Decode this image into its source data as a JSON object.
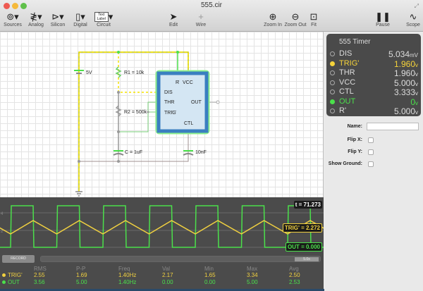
{
  "window": {
    "title": "555.cir"
  },
  "toolbar": {
    "items": [
      {
        "label": "Sources",
        "icon": "ac-source-icon"
      },
      {
        "label": "Analog",
        "icon": "resistor-icon"
      },
      {
        "label": "Silicon",
        "icon": "diode-icon"
      },
      {
        "label": "Digital",
        "icon": "chip-icon"
      },
      {
        "label": "Circuit",
        "icon": "text-label-icon",
        "icon_text": "Text Label"
      },
      {
        "label": "Edit",
        "icon": "pointer-icon"
      },
      {
        "label": "Wire",
        "icon": "plus-icon"
      },
      {
        "label": "Zoom In",
        "icon": "zoom-in-icon"
      },
      {
        "label": "Zoom Out",
        "icon": "zoom-out-icon"
      },
      {
        "label": "Fit",
        "icon": "fit-icon"
      },
      {
        "label": "Pause",
        "icon": "pause-icon"
      },
      {
        "label": "Scope",
        "icon": "scope-icon"
      }
    ]
  },
  "circuit": {
    "labels": {
      "battery": "5V",
      "r1": "R1 = 10k",
      "r2": "R2 = 500k",
      "c": "C = 1uF",
      "c2": "10nF"
    },
    "chip_pins": {
      "r": "R",
      "vcc": "VCC",
      "dis": "DIS",
      "thr": "THR",
      "trig": "TRIG",
      "out": "OUT",
      "ctl": "CTL"
    }
  },
  "probe": {
    "title": "555 Timer",
    "rows": [
      {
        "name": "DIS",
        "value": "5.034",
        "unit": "mV",
        "color": "#dddddd",
        "selected": false
      },
      {
        "name": "TRIG'",
        "value": "1.960",
        "unit": "v",
        "color": "#f5d33a",
        "selected": true
      },
      {
        "name": "THR",
        "value": "1.960",
        "unit": "v",
        "color": "#dddddd",
        "selected": false
      },
      {
        "name": "VCC",
        "value": "5.000",
        "unit": "v",
        "color": "#dddddd",
        "selected": false
      },
      {
        "name": "CTL",
        "value": "3.333",
        "unit": "v",
        "color": "#dddddd",
        "selected": false
      },
      {
        "name": "OUT",
        "value": "0",
        "unit": "v",
        "color": "#4be04b",
        "selected": true
      },
      {
        "name": "R'",
        "value": "5.000",
        "unit": "v",
        "color": "#dddddd",
        "selected": false
      }
    ]
  },
  "properties": {
    "name_label": "Name:",
    "name_value": "",
    "flipx_label": "Flip X:",
    "flipy_label": "Flip Y:",
    "ground_label": "Show Ground:",
    "flipx": false,
    "flipy": false,
    "ground": false
  },
  "scope": {
    "time_readout": "t = 71.273",
    "trig_readout": "TRIG' = 2.272",
    "out_readout": "OUT = 0.000",
    "axis_labels": [
      "4",
      "2"
    ],
    "colors": {
      "trig": "#f0d040",
      "out": "#4be04b"
    }
  },
  "stats": {
    "record_label": "RECORD",
    "time_window": "5.0s",
    "headers": [
      "RMS",
      "P-P",
      "Freq",
      "Val",
      "Min",
      "Max",
      "Avg"
    ],
    "rows": [
      {
        "name": "TRIG'",
        "color": "#f0d040",
        "values": [
          "2.55",
          "1.69",
          "1.40Hz",
          "2.17",
          "1.65",
          "3.34",
          "2.50"
        ]
      },
      {
        "name": "OUT",
        "color": "#4be04b",
        "values": [
          "3.56",
          "5.00",
          "1.40Hz",
          "0.00",
          "0.00",
          "5.00",
          "2.53"
        ]
      }
    ]
  }
}
